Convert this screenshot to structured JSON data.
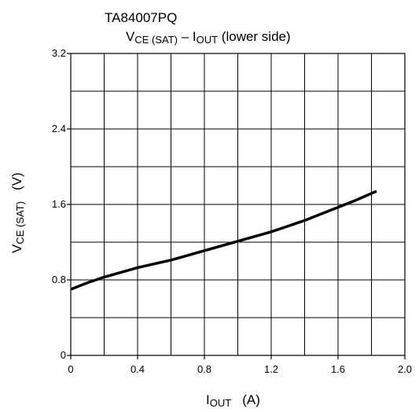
{
  "chart_data": {
    "type": "line",
    "part_number": "TA84007PQ",
    "title": {
      "main": "V",
      "main_sub": "CE (SAT)",
      "sep": " – I",
      "sep_sub": "OUT",
      "tail": " (lower side)"
    },
    "xlabel": {
      "main": "I",
      "sub": "OUT",
      "unit": "(A)"
    },
    "ylabel": {
      "main": "V",
      "sub": "CE (SAT)",
      "unit": "(V)"
    },
    "xlim": [
      0,
      2.0
    ],
    "ylim": [
      0,
      3.2
    ],
    "x_ticks": [
      "0",
      "0.4",
      "0.8",
      "1.2",
      "1.6",
      "2.0"
    ],
    "y_ticks": [
      "0",
      "0.8",
      "1.6",
      "2.4",
      "3.2"
    ],
    "x_tick_values": [
      0,
      0.4,
      0.8,
      1.2,
      1.6,
      2.0
    ],
    "y_tick_values": [
      0,
      0.8,
      1.6,
      2.4,
      3.2
    ],
    "grid": true,
    "grid_x_step": 0.2,
    "grid_y_step": 0.4,
    "series": [
      {
        "color": "#000000",
        "x": [
          0.0,
          0.1,
          0.2,
          0.3,
          0.4,
          0.5,
          0.6,
          0.7,
          0.8,
          0.9,
          1.0,
          1.1,
          1.2,
          1.3,
          1.4,
          1.5,
          1.6,
          1.7,
          1.83
        ],
        "y": [
          0.7,
          0.77,
          0.83,
          0.88,
          0.93,
          0.97,
          1.01,
          1.06,
          1.11,
          1.16,
          1.21,
          1.26,
          1.31,
          1.37,
          1.43,
          1.5,
          1.57,
          1.64,
          1.74
        ]
      }
    ]
  }
}
